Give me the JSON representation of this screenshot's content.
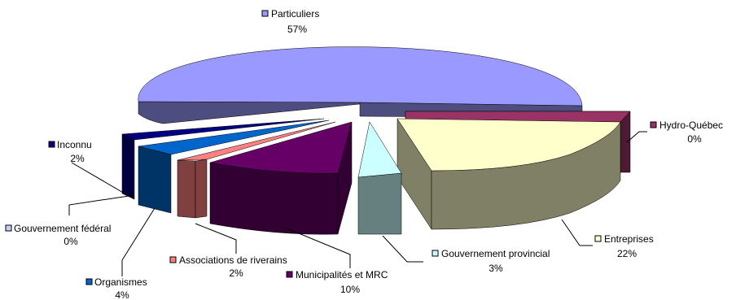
{
  "chart_data": {
    "type": "pie",
    "variant": "3d-exploded",
    "title": "",
    "legend": "none",
    "slices": [
      {
        "label": "Particuliers",
        "value_label": "57%",
        "value": 57,
        "color": "#9999ff",
        "side": "#4d4d80"
      },
      {
        "label": "Hydro-Québec",
        "value_label": "0%",
        "value": 0,
        "color": "#993366",
        "side": "#4d1a33"
      },
      {
        "label": "Entreprises",
        "value_label": "22%",
        "value": 22,
        "color": "#ffffcc",
        "side": "#808066"
      },
      {
        "label": "Gouvernement provincial",
        "value_label": "3%",
        "value": 3,
        "color": "#ccffff",
        "side": "#668080"
      },
      {
        "label": "Municipalités et MRC",
        "value_label": "10%",
        "value": 10,
        "color": "#660066",
        "side": "#330033"
      },
      {
        "label": "Associations de riverains",
        "value_label": "2%",
        "value": 2,
        "color": "#ff8080",
        "side": "#804040"
      },
      {
        "label": "Organismes",
        "value_label": "4%",
        "value": 4,
        "color": "#0066cc",
        "side": "#003366"
      },
      {
        "label": "Gouvernement fédéral",
        "value_label": "0%",
        "value": 0,
        "color": "#ccccff",
        "side": "#666680"
      },
      {
        "label": "Inconnu",
        "value_label": "2%",
        "value": 2,
        "color": "#000080",
        "side": "#000040"
      }
    ]
  }
}
